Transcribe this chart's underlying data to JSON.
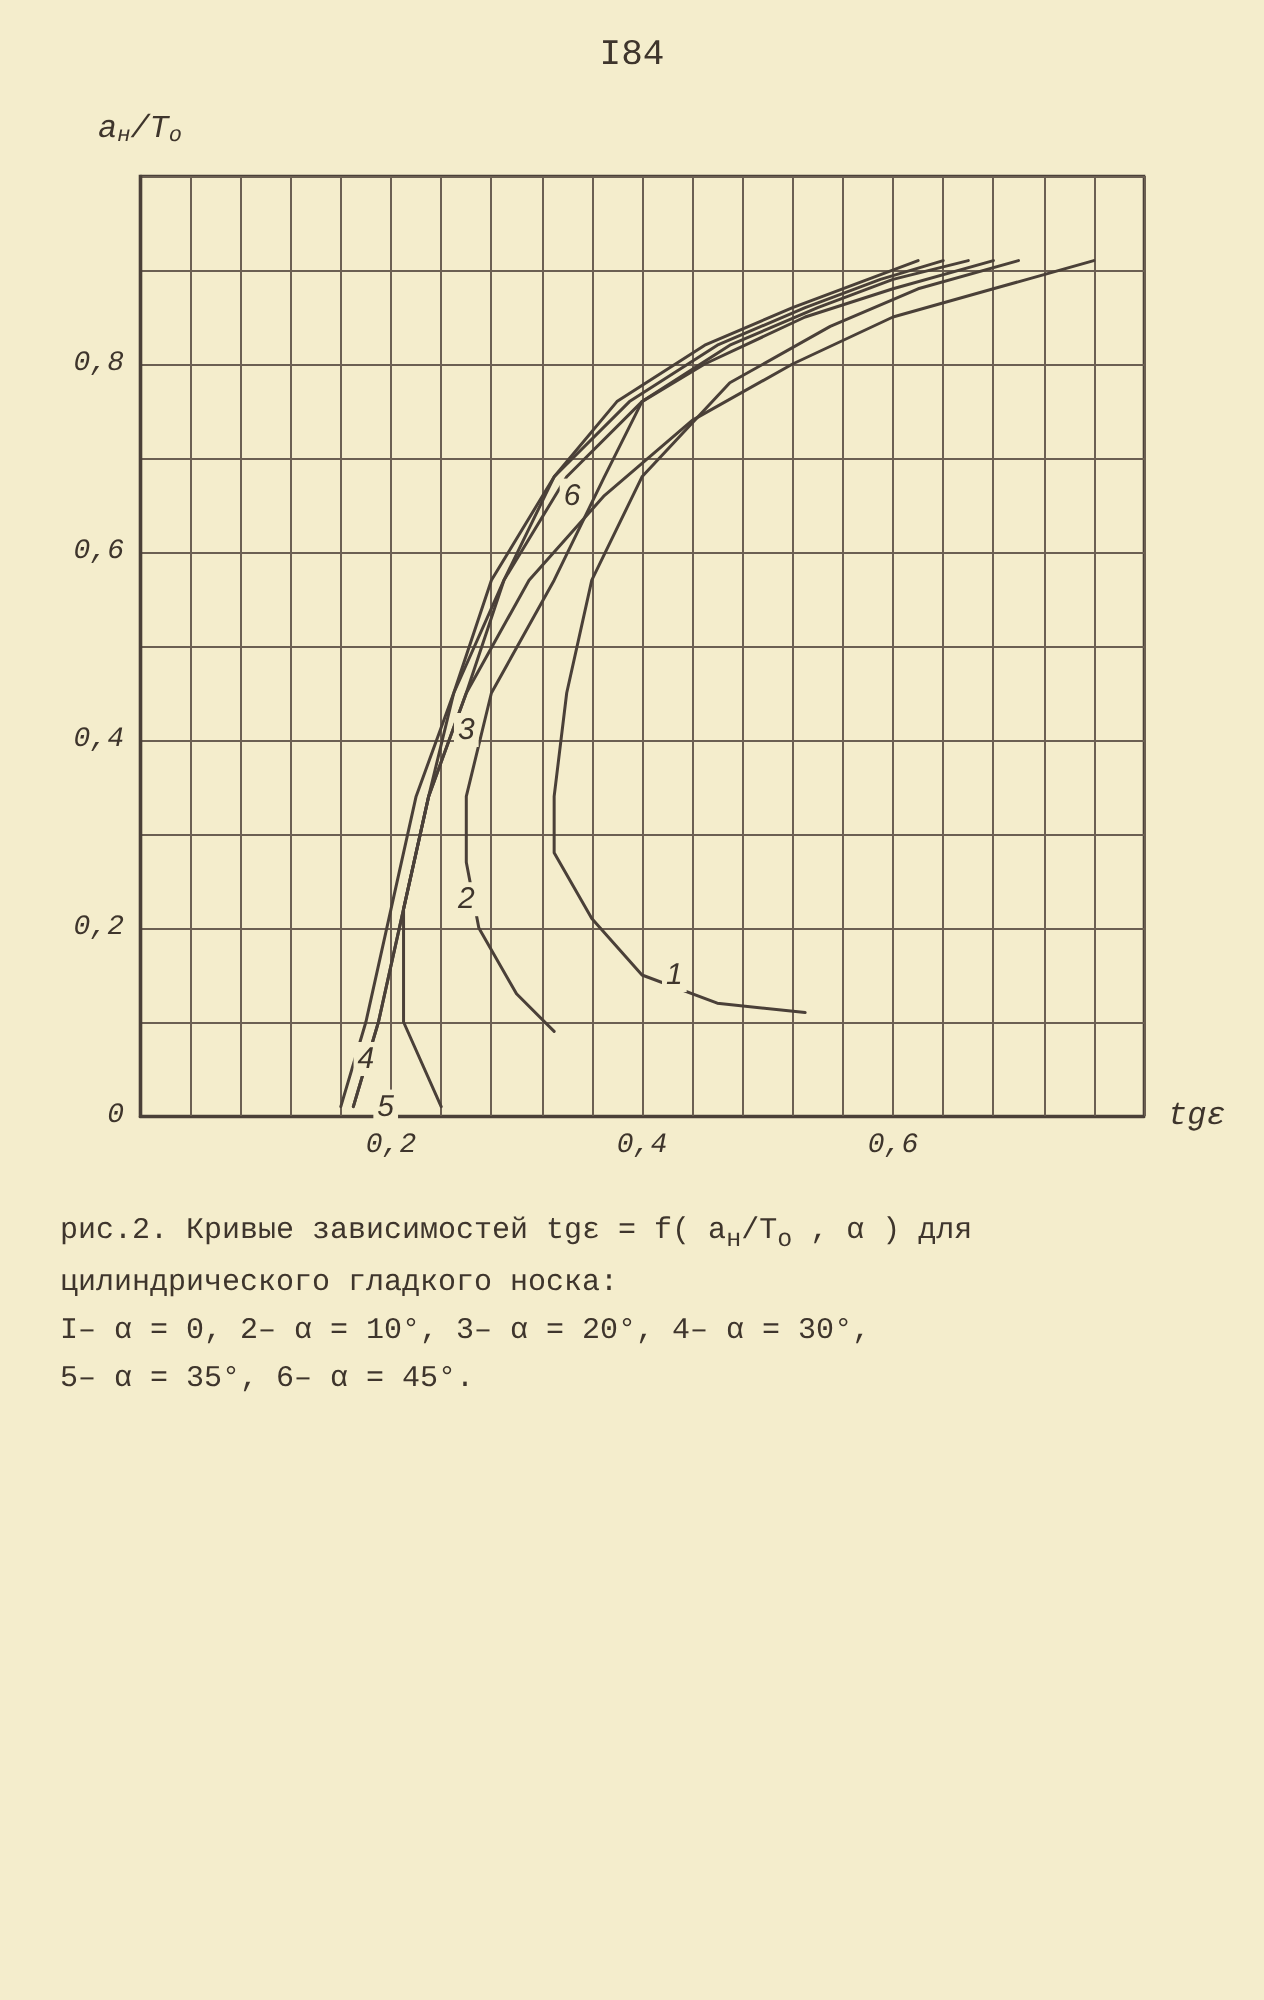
{
  "chart_data": {
    "type": "line",
    "title": "рис.2. Кривые зависимостей tgε = f( a$_{н}$/T$_{о}$ , α ) для цилиндрического гладкого носка:",
    "xlabel": "tgε",
    "ylabel": "a$_{н}$/T$_{о}$",
    "annotations": [
      "I84",
      "I– α = 0,   2– α = 10°,   3– α = 20°,   4– α = 30°,",
      "5– α = 35°,   6– α = 45°."
    ],
    "xlim": [
      0,
      0.8
    ],
    "ylim": [
      0,
      1
    ],
    "xticks": [
      {
        "value": 0,
        "label": null
      },
      {
        "value": 0.04,
        "label": null
      },
      {
        "value": 0.08,
        "label": null
      },
      {
        "value": 0.12,
        "label": null
      },
      {
        "value": 0.16,
        "label": null
      },
      {
        "value": 0.2,
        "label": "0,2"
      },
      {
        "value": 0.24,
        "label": null
      },
      {
        "value": 0.28,
        "label": null
      },
      {
        "value": 0.32,
        "label": null
      },
      {
        "value": 0.36,
        "label": null
      },
      {
        "value": 0.4,
        "label": "0,4"
      },
      {
        "value": 0.44,
        "label": null
      },
      {
        "value": 0.48,
        "label": null
      },
      {
        "value": 0.52,
        "label": null
      },
      {
        "value": 0.56,
        "label": null
      },
      {
        "value": 0.6,
        "label": "0,6"
      },
      {
        "value": 0.64,
        "label": null
      },
      {
        "value": 0.68,
        "label": null
      },
      {
        "value": 0.72,
        "label": null
      },
      {
        "value": 0.76,
        "label": null
      },
      {
        "value": 0.8,
        "label": null
      }
    ],
    "yticks": [
      0,
      {
        "value": 0.1,
        "label": null
      },
      {
        "value": 0.2,
        "label": "0,2"
      },
      {
        "value": 0.3,
        "label": null
      },
      {
        "value": 0.4,
        "label": "0,4"
      },
      {
        "value": 0.5,
        "label": null
      },
      {
        "value": 0.6,
        "label": "0,6"
      },
      {
        "value": 0.7,
        "label": null
      },
      {
        "value": 0.8,
        "label": "0,8"
      },
      {
        "value": 0.9,
        "label": null
      },
      {
        "value": 1,
        "label": null
      }
    ],
    "grid": true,
    "legend": false,
    "marker": "none",
    "line_style": "solid",
    "series": [
      {
        "name": "1",
        "color": "#4a4038",
        "x": [
          0.53,
          0.46,
          0.4,
          0.36,
          0.33,
          0.33,
          0.34,
          0.36,
          0.4,
          0.47,
          0.55,
          0.62,
          0.7
        ],
        "values": [
          0.11,
          0.12,
          0.15,
          0.21,
          0.28,
          0.34,
          0.45,
          0.57,
          0.68,
          0.78,
          0.84,
          0.88,
          0.91
        ]
      },
      {
        "name": "2",
        "color": "#4a4038",
        "x": [
          0.33,
          0.3,
          0.27,
          0.26,
          0.26,
          0.28,
          0.33,
          0.37,
          0.4,
          0.45,
          0.53,
          0.6,
          0.68
        ],
        "values": [
          0.09,
          0.13,
          0.2,
          0.27,
          0.34,
          0.45,
          0.57,
          0.68,
          0.76,
          0.8,
          0.85,
          0.88,
          0.91
        ]
      },
      {
        "name": "3",
        "color": "#4a4038",
        "x": [
          0.24,
          0.21,
          0.21,
          0.23,
          0.26,
          0.29,
          0.34,
          0.4,
          0.47,
          0.54,
          0.6,
          0.66
        ],
        "values": [
          0.01,
          0.1,
          0.22,
          0.34,
          0.45,
          0.57,
          0.68,
          0.76,
          0.82,
          0.86,
          0.89,
          0.91
        ]
      },
      {
        "name": "4",
        "color": "#4a4038",
        "x": [
          0.16,
          0.18,
          0.2,
          0.22,
          0.25,
          0.28,
          0.33,
          0.38,
          0.45,
          0.52,
          0.58,
          0.62
        ],
        "values": [
          0.01,
          0.1,
          0.22,
          0.34,
          0.45,
          0.57,
          0.68,
          0.76,
          0.82,
          0.86,
          0.89,
          0.91
        ]
      },
      {
        "name": "5",
        "color": "#4a4038",
        "x": [
          0.17,
          0.19,
          0.21,
          0.23,
          0.25,
          0.29,
          0.33,
          0.39,
          0.46,
          0.53,
          0.59,
          0.64
        ],
        "values": [
          0.01,
          0.1,
          0.22,
          0.34,
          0.45,
          0.57,
          0.68,
          0.76,
          0.82,
          0.86,
          0.89,
          0.91
        ]
      },
      {
        "name": "6",
        "color": "#4a4038",
        "x": [
          0.17,
          0.19,
          0.21,
          0.23,
          0.26,
          0.31,
          0.37,
          0.44,
          0.52,
          0.6,
          0.68,
          0.76
        ],
        "values": [
          0.01,
          0.1,
          0.22,
          0.34,
          0.45,
          0.57,
          0.66,
          0.74,
          0.8,
          0.85,
          0.88,
          0.91
        ]
      }
    ]
  }
}
